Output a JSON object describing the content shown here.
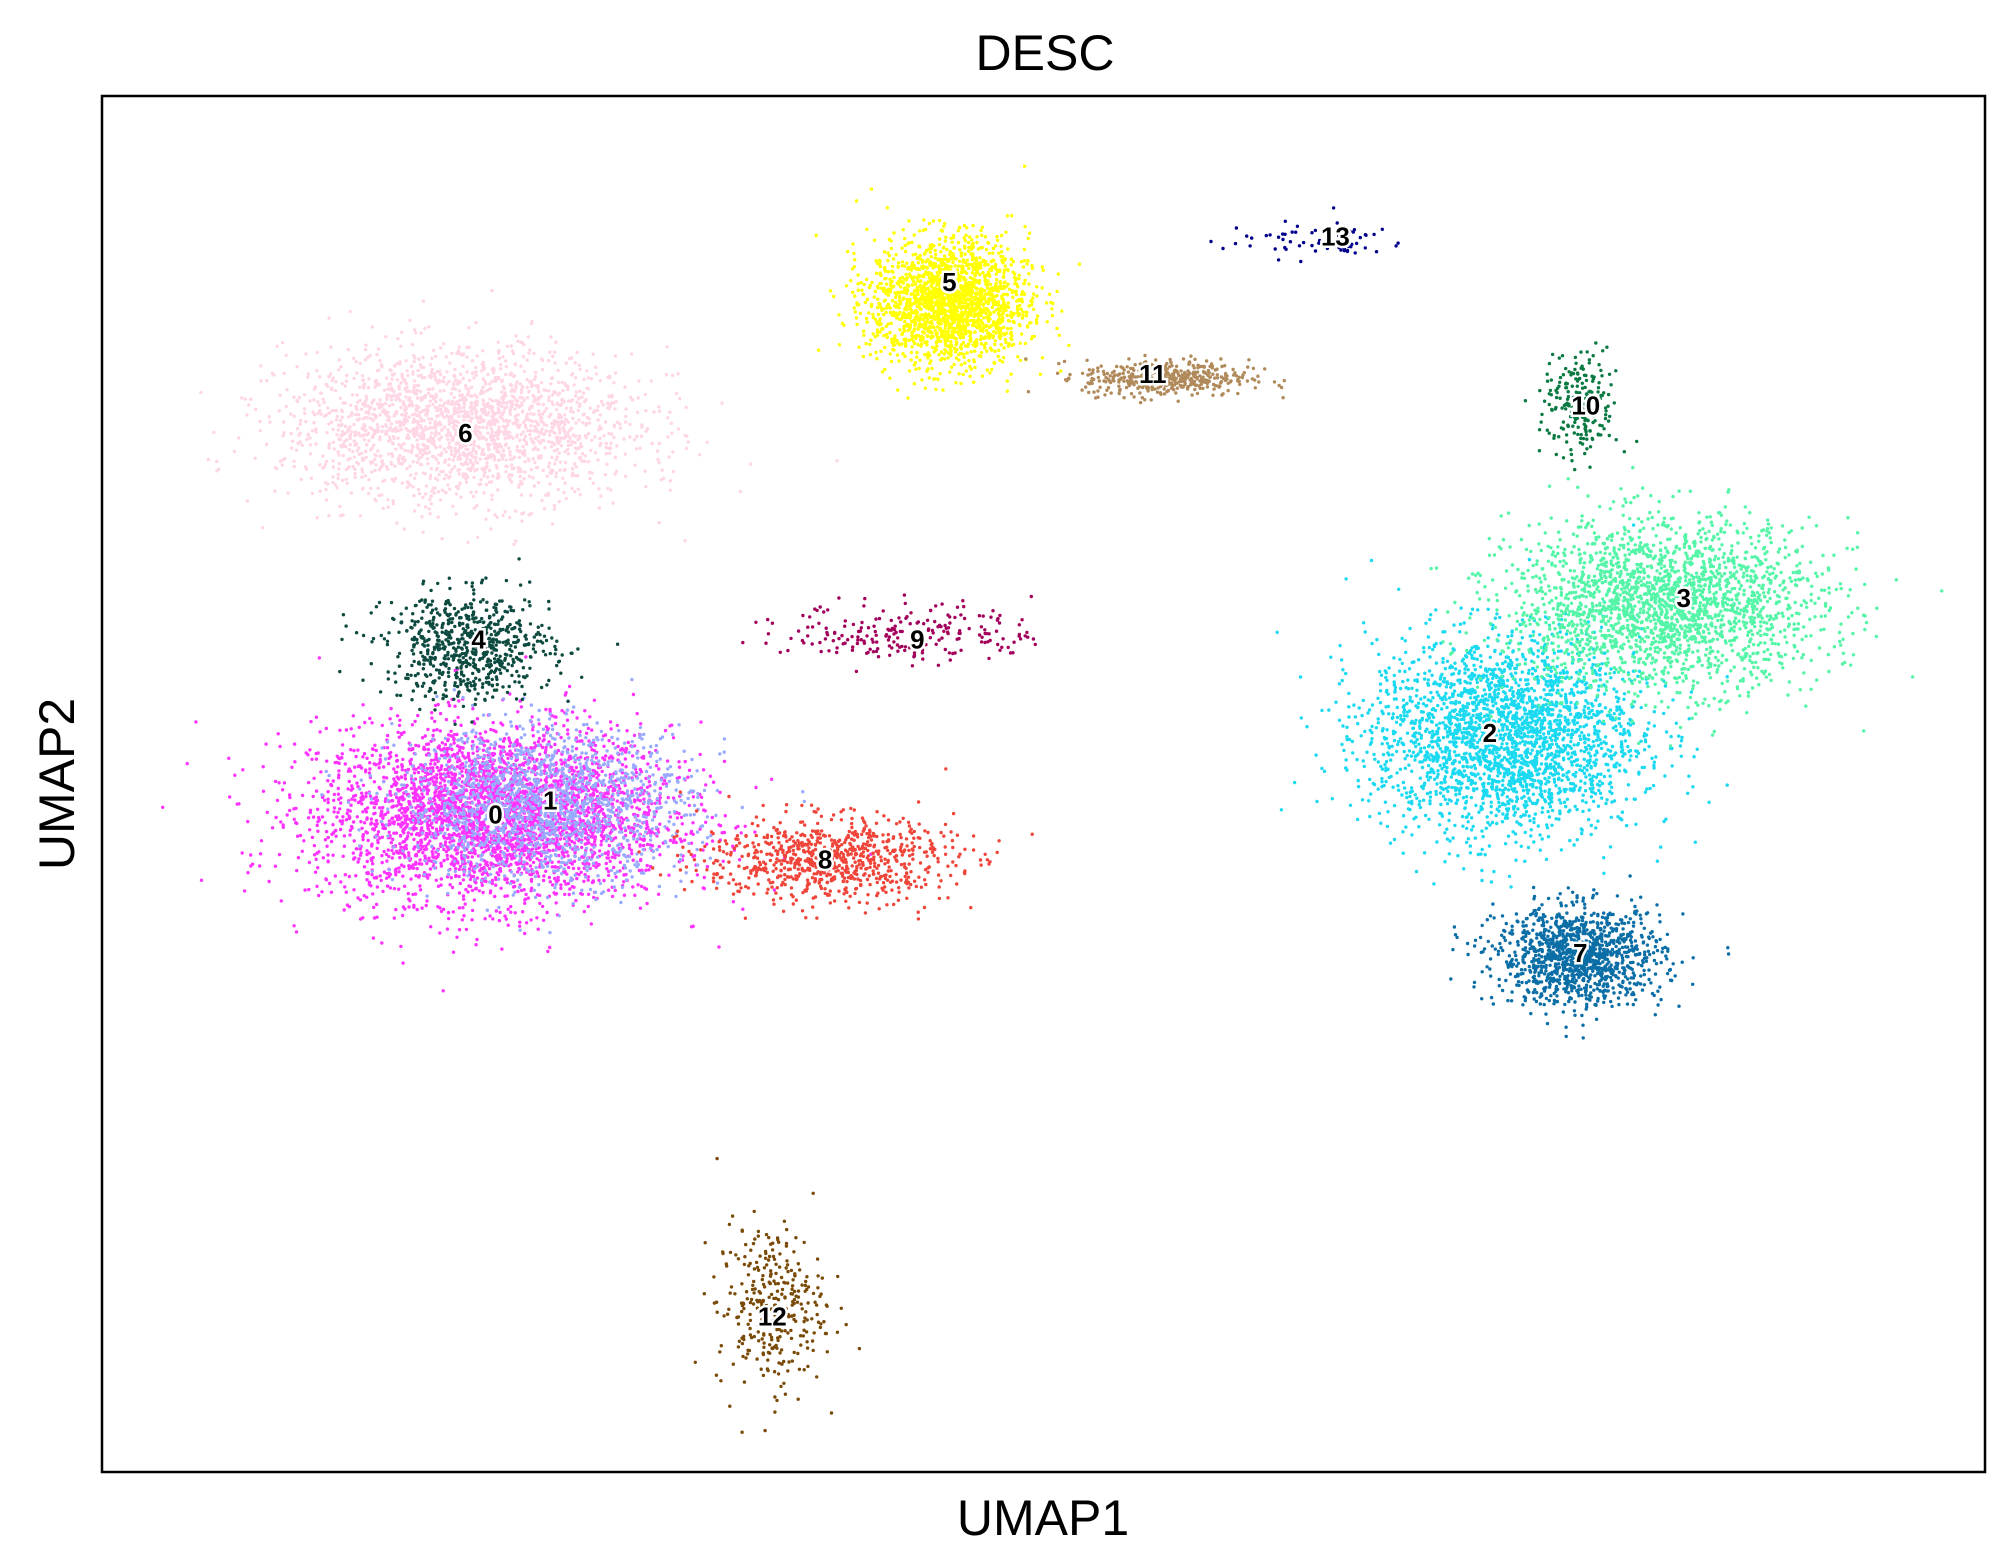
{
  "chart_data": {
    "type": "scatter",
    "title": "DESC",
    "xlabel": "UMAP1",
    "ylabel": "UMAP2",
    "xlim": [
      0,
      100
    ],
    "ylim": [
      0,
      100
    ],
    "grid": false,
    "legend": "on data",
    "ticks": false,
    "clusters": [
      {
        "label": "0",
        "color": "#ff33ff",
        "center": [
          20.8,
          47.8
        ],
        "spread": [
          8.5,
          5.8
        ],
        "n": 3600
      },
      {
        "label": "1",
        "color": "#99aaff",
        "center": [
          23.5,
          48.5
        ],
        "spread": [
          7.0,
          5.0
        ],
        "n": 1500
      },
      {
        "label": "2",
        "color": "#1ad9f0",
        "center": [
          74.5,
          53.5
        ],
        "spread": [
          6.5,
          6.5
        ],
        "n": 2600
      },
      {
        "label": "3",
        "color": "#55f5a8",
        "center": [
          83.0,
          63.0
        ],
        "spread": [
          7.5,
          5.5
        ],
        "n": 2300
      },
      {
        "label": "4",
        "color": "#0d4a40",
        "center": [
          19.5,
          60.0
        ],
        "spread": [
          4.0,
          3.5
        ],
        "n": 700
      },
      {
        "label": "5",
        "color": "#ffff00",
        "center": [
          45.0,
          85.0
        ],
        "spread": [
          3.8,
          4.2
        ],
        "n": 1900
      },
      {
        "label": "6",
        "color": "#ffd6e6",
        "center": [
          19.0,
          76.0
        ],
        "spread": [
          8.5,
          5.0
        ],
        "n": 2100
      },
      {
        "label": "7",
        "color": "#0b6ea6",
        "center": [
          78.5,
          37.5
        ],
        "spread": [
          4.0,
          3.2
        ],
        "n": 1200
      },
      {
        "label": "8",
        "color": "#f0453a",
        "center": [
          38.5,
          44.5
        ],
        "spread": [
          6.0,
          2.8
        ],
        "n": 800
      },
      {
        "label": "9",
        "color": "#a3005c",
        "center": [
          43.0,
          61.0
        ],
        "spread": [
          6.0,
          2.0
        ],
        "n": 220
      },
      {
        "label": "10",
        "color": "#0a7a42",
        "center": [
          78.5,
          77.5
        ],
        "spread": [
          1.8,
          3.5
        ],
        "n": 220
      },
      {
        "label": "11",
        "color": "#b08a5a",
        "center": [
          56.5,
          79.5
        ],
        "spread": [
          4.0,
          1.2
        ],
        "n": 450
      },
      {
        "label": "12",
        "color": "#7a4a08",
        "center": [
          35.5,
          12.0
        ],
        "spread": [
          2.6,
          5.5
        ],
        "n": 320
      },
      {
        "label": "13",
        "color": "#00008b",
        "center": [
          64.5,
          89.5
        ],
        "spread": [
          4.5,
          1.2
        ],
        "n": 70
      }
    ],
    "labels": [
      {
        "text": "0",
        "x": 20.9,
        "y": 47.8
      },
      {
        "text": "1",
        "x": 23.8,
        "y": 48.8
      },
      {
        "text": "2",
        "x": 73.7,
        "y": 53.7
      },
      {
        "text": "3",
        "x": 84.0,
        "y": 63.5
      },
      {
        "text": "4",
        "x": 20.0,
        "y": 60.5
      },
      {
        "text": "5",
        "x": 45.0,
        "y": 86.5
      },
      {
        "text": "6",
        "x": 19.3,
        "y": 75.5
      },
      {
        "text": "7",
        "x": 78.5,
        "y": 37.7
      },
      {
        "text": "8",
        "x": 38.4,
        "y": 44.5
      },
      {
        "text": "9",
        "x": 43.3,
        "y": 60.5
      },
      {
        "text": "10",
        "x": 78.8,
        "y": 77.5
      },
      {
        "text": "11",
        "x": 55.8,
        "y": 79.8
      },
      {
        "text": "12",
        "x": 35.6,
        "y": 11.3
      },
      {
        "text": "13",
        "x": 65.5,
        "y": 89.8
      }
    ]
  }
}
